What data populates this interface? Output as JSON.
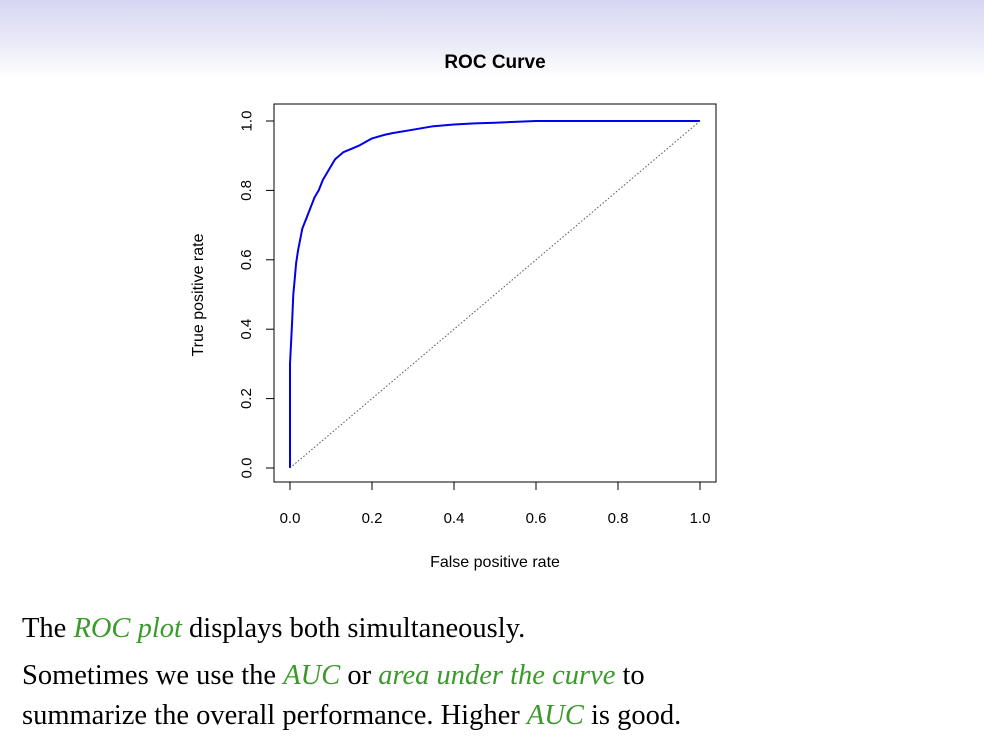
{
  "chart_data": {
    "type": "line",
    "title": "ROC Curve",
    "xlabel": "False positive rate",
    "ylabel": "True positive rate",
    "xlim": [
      0,
      1
    ],
    "ylim": [
      0,
      1
    ],
    "xticks": [
      "0.0",
      "0.2",
      "0.4",
      "0.6",
      "0.8",
      "1.0"
    ],
    "yticks": [
      "0.0",
      "0.2",
      "0.4",
      "0.6",
      "0.8",
      "1.0"
    ],
    "grid": false,
    "series": [
      {
        "color": "#0000ee",
        "x": [
          0,
          0.0,
          0.005,
          0.008,
          0.012,
          0.015,
          0.02,
          0.025,
          0.03,
          0.04,
          0.05,
          0.06,
          0.07,
          0.08,
          0.09,
          0.1,
          0.11,
          0.12,
          0.13,
          0.15,
          0.17,
          0.2,
          0.23,
          0.25,
          0.3,
          0.35,
          0.4,
          0.45,
          0.5,
          0.6,
          0.7,
          0.8,
          0.9,
          1.0
        ],
        "y": [
          0,
          0.3,
          0.42,
          0.5,
          0.55,
          0.59,
          0.63,
          0.66,
          0.69,
          0.72,
          0.75,
          0.78,
          0.8,
          0.83,
          0.85,
          0.87,
          0.89,
          0.9,
          0.91,
          0.92,
          0.93,
          0.95,
          0.96,
          0.965,
          0.975,
          0.985,
          0.99,
          0.993,
          0.995,
          1.0,
          1.0,
          1.0,
          1.0,
          1.0
        ]
      },
      {
        "color": "#555555",
        "style": "dotted",
        "x": [
          0,
          1
        ],
        "y": [
          0,
          1
        ]
      }
    ]
  },
  "text": {
    "line1_pre": "The ",
    "line1_hl": "ROC plot",
    "line1_post": " displays both simultaneously.",
    "line2_pre": "Sometimes we use the ",
    "line2_hl1": "AUC",
    "line2_mid": " or ",
    "line2_hl2": "area under the curve",
    "line2_post": " to",
    "line3_pre": "summarize the overall performance. Higher ",
    "line3_hl": "AUC",
    "line3_post": " is good."
  }
}
